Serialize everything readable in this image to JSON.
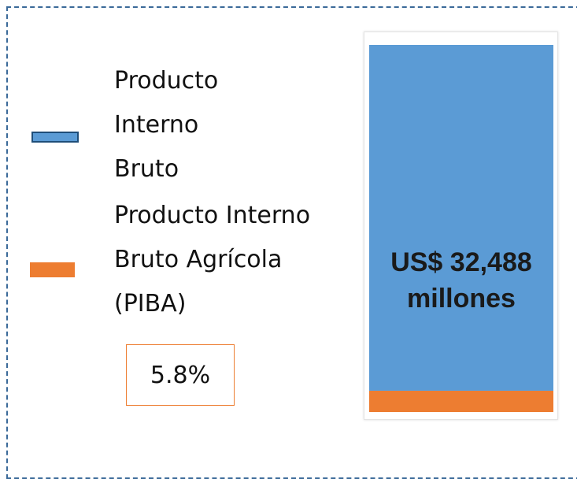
{
  "chart_data": {
    "type": "bar",
    "stacked": true,
    "categories": [
      null
    ],
    "series": [
      {
        "name": "Producto Interno Bruto",
        "color": "#5b9bd5",
        "values": [
          94.2
        ]
      },
      {
        "name": "Producto Interno Bruto Agrícola (PIBA)",
        "color": "#ed7d31",
        "values": [
          5.8
        ],
        "value_labels": [
          "5.8%"
        ]
      }
    ],
    "annotation": "US$ 32,488 millones",
    "ylim": [
      0,
      100
    ]
  }
}
